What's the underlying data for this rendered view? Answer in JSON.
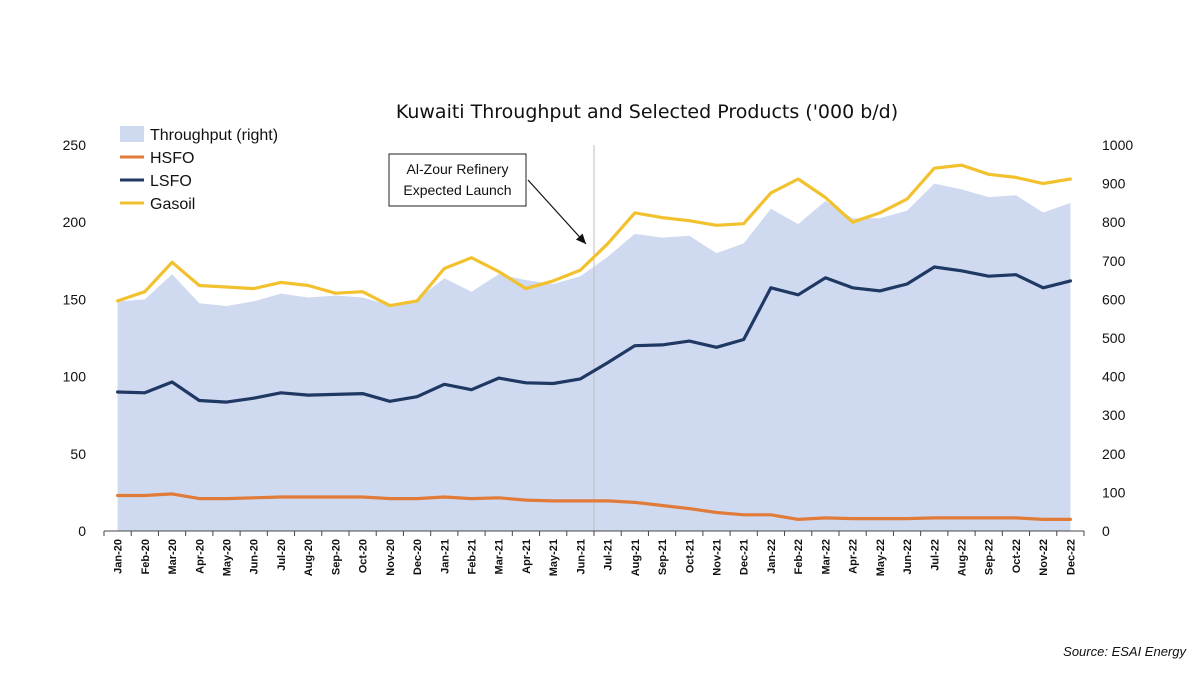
{
  "chart_data": {
    "type": "line",
    "title": "Kuwaiti Throughput and Selected Products ('000 b/d)",
    "categories": [
      "Jan-20",
      "Feb-20",
      "Mar-20",
      "Apr-20",
      "May-20",
      "Jun-20",
      "Jul-20",
      "Aug-20",
      "Sep-20",
      "Oct-20",
      "Nov-20",
      "Dec-20",
      "Jan-21",
      "Feb-21",
      "Mar-21",
      "Apr-21",
      "May-21",
      "Jun-21",
      "Jul-21",
      "Aug-21",
      "Sep-21",
      "Oct-21",
      "Nov-21",
      "Dec-21",
      "Jan-22",
      "Feb-22",
      "Mar-22",
      "Apr-22",
      "May-22",
      "Jun-22",
      "Jul-22",
      "Aug-22",
      "Sep-22",
      "Oct-22",
      "Nov-22",
      "Dec-22"
    ],
    "y_left": {
      "min": 0,
      "max": 250,
      "ticks": [
        0,
        50,
        100,
        150,
        200,
        250
      ],
      "tick_labels": [
        "0",
        "50",
        "100",
        "150",
        "200",
        "250"
      ]
    },
    "y_right": {
      "min": 0,
      "max": 1000,
      "ticks": [
        0,
        100,
        200,
        300,
        400,
        500,
        600,
        700,
        800,
        900,
        1000
      ],
      "tick_labels": [
        "0",
        "100",
        "200",
        "300",
        "400",
        "500",
        "600",
        "700",
        "800",
        "900",
        "1000"
      ]
    },
    "series": [
      {
        "name": "Throughput (right)",
        "kind": "area",
        "axis": "right",
        "color": "#cfdaf0",
        "values": [
          595,
          600,
          665,
          590,
          583,
          595,
          615,
          605,
          610,
          605,
          585,
          600,
          655,
          620,
          665,
          650,
          640,
          660,
          710,
          770,
          760,
          765,
          720,
          745,
          835,
          795,
          855,
          810,
          810,
          830,
          900,
          885,
          865,
          870,
          825,
          850
        ]
      },
      {
        "name": "HSFO",
        "kind": "line",
        "axis": "left",
        "color": "#e07b39",
        "values": [
          23,
          23,
          24,
          21,
          21,
          21.5,
          22,
          22,
          22,
          22,
          21,
          21,
          22,
          21,
          21.5,
          20,
          19.5,
          19.5,
          19.5,
          18.5,
          16.5,
          14.5,
          12,
          10.5,
          10.5,
          7.5,
          8.5,
          8,
          8,
          8,
          8.5,
          8.5,
          8.5,
          8.5,
          7.5,
          7.5
        ]
      },
      {
        "name": "LSFO",
        "kind": "line",
        "axis": "left",
        "color": "#1f3864",
        "values": [
          90,
          89.5,
          96.5,
          84.5,
          83.5,
          86,
          89.5,
          88,
          88.5,
          89,
          84,
          87,
          95,
          91.5,
          99,
          96,
          95.5,
          98.5,
          109,
          120,
          120.5,
          123,
          119,
          124,
          157.5,
          153,
          164,
          157.5,
          155.5,
          160,
          171,
          168.5,
          165,
          166,
          157.5,
          162
        ]
      },
      {
        "name": "Gasoil",
        "kind": "line",
        "axis": "left",
        "color": "#f2c12e",
        "values": [
          149,
          155,
          174,
          159,
          158,
          157,
          161,
          159,
          154,
          155,
          146,
          149,
          170,
          177,
          168,
          157,
          162,
          169,
          186,
          206,
          203,
          201,
          198,
          199,
          219,
          228,
          216,
          200,
          206,
          215,
          235,
          237,
          231,
          229,
          225,
          228
        ]
      }
    ],
    "annotation": {
      "text": [
        "Al-Zour Refinery",
        "Expected Launch"
      ],
      "points_to": "Jul-21"
    },
    "legend_position": "top-left",
    "source": "Source: ESAI Energy"
  }
}
